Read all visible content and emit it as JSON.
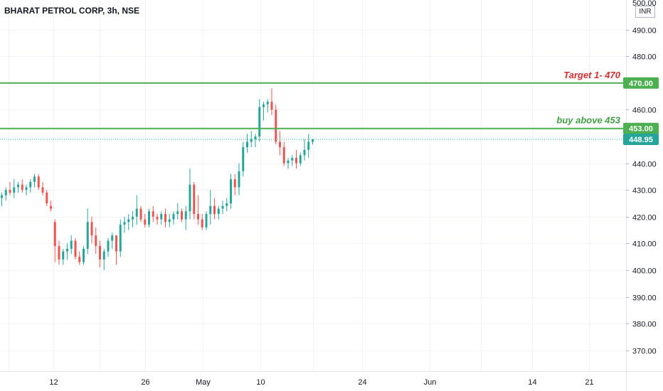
{
  "header": {
    "title": "BHARAT PETROL CORP, 3h, NSE",
    "currency": "INR"
  },
  "chart_data": {
    "type": "candlestick",
    "ylim": [
      364,
      501
    ],
    "y_ticks": [
      370,
      380,
      390,
      400,
      410,
      420,
      430,
      440,
      450,
      460,
      470,
      480,
      490
    ],
    "y_tick_labels": [
      "370.00",
      "380.00",
      "390.00",
      "400.00",
      "410.00",
      "420.00",
      "430.00",
      "440.00",
      "450.00",
      "460.00",
      "470.00",
      "480.00",
      "490.00"
    ],
    "top_tick_label": "500.00",
    "x_tick_labels": [
      "12",
      "26",
      "May",
      "10",
      "24",
      "Jun",
      "14",
      "21"
    ],
    "grid": true,
    "colors": {
      "up": "#26a69a",
      "down": "#ef5350",
      "level": "#4caf50",
      "target": "#d32f2f",
      "last": "#26a69a"
    },
    "levels": [
      {
        "price": 470.0,
        "price_label": "470.00",
        "text": "Target 1- 470",
        "text_color": "#d32f2f"
      },
      {
        "price": 453.0,
        "price_label": "453.00",
        "text": "buy above 453",
        "text_color": "#43a047"
      }
    ],
    "last_price": {
      "price": 448.95,
      "label": "448.95"
    },
    "candles": [
      [
        427,
        429,
        424,
        428
      ],
      [
        428,
        431,
        426,
        430
      ],
      [
        430,
        433,
        428,
        429
      ],
      [
        429,
        434,
        427,
        431
      ],
      [
        431,
        433,
        429,
        432
      ],
      [
        432,
        434,
        429,
        430
      ],
      [
        430,
        432,
        428,
        431
      ],
      [
        431,
        434,
        429,
        433
      ],
      [
        433,
        436,
        431,
        435
      ],
      [
        435,
        436,
        430,
        431
      ],
      [
        431,
        433,
        428,
        429
      ],
      [
        429,
        430,
        424,
        425
      ],
      [
        424,
        426,
        422,
        423
      ],
      [
        418,
        419,
        403,
        409
      ],
      [
        409,
        411,
        402,
        404
      ],
      [
        404,
        408,
        402,
        407
      ],
      [
        407,
        410,
        404,
        408
      ],
      [
        408,
        413,
        406,
        411
      ],
      [
        411,
        412,
        404,
        405
      ],
      [
        405,
        407,
        402,
        403
      ],
      [
        403,
        409,
        402,
        408
      ],
      [
        408,
        423,
        406,
        418
      ],
      [
        418,
        420,
        410,
        413
      ],
      [
        413,
        416,
        406,
        409
      ],
      [
        409,
        411,
        401,
        404
      ],
      [
        404,
        408,
        400,
        407
      ],
      [
        407,
        412,
        405,
        411
      ],
      [
        411,
        414,
        408,
        413
      ],
      [
        413,
        413,
        402,
        407
      ],
      [
        407,
        419,
        405,
        417
      ],
      [
        417,
        420,
        414,
        418
      ],
      [
        418,
        421,
        415,
        419
      ],
      [
        419,
        422,
        416,
        420
      ],
      [
        420,
        428,
        417,
        423
      ],
      [
        423,
        424,
        418,
        419
      ],
      [
        419,
        421,
        416,
        417
      ],
      [
        417,
        423,
        416,
        422
      ],
      [
        422,
        424,
        418,
        420
      ],
      [
        420,
        421,
        417,
        419
      ],
      [
        419,
        422,
        417,
        421
      ],
      [
        421,
        423,
        416,
        418
      ],
      [
        418,
        421,
        416,
        419
      ],
      [
        419,
        422,
        417,
        421
      ],
      [
        421,
        425,
        419,
        422
      ],
      [
        422,
        423,
        418,
        419
      ],
      [
        419,
        424,
        415,
        422
      ],
      [
        422,
        438,
        419,
        432
      ],
      [
        432,
        433,
        419,
        421
      ],
      [
        421,
        428,
        417,
        419
      ],
      [
        419,
        421,
        415,
        416
      ],
      [
        416,
        422,
        415,
        421
      ],
      [
        421,
        430,
        417,
        424
      ],
      [
        424,
        427,
        419,
        421
      ],
      [
        421,
        424,
        419,
        423
      ],
      [
        423,
        426,
        421,
        424
      ],
      [
        424,
        427,
        422,
        425
      ],
      [
        425,
        436,
        423,
        434
      ],
      [
        434,
        436,
        428,
        431
      ],
      [
        431,
        440,
        428,
        437
      ],
      [
        437,
        448,
        435,
        446
      ],
      [
        446,
        451,
        444,
        448
      ],
      [
        448,
        452,
        446,
        449
      ],
      [
        449,
        451,
        446,
        450
      ],
      [
        450,
        464,
        448,
        461
      ],
      [
        461,
        463,
        456,
        462
      ],
      [
        462,
        464,
        459,
        463
      ],
      [
        463,
        468,
        458,
        460
      ],
      [
        460,
        462,
        447,
        448
      ],
      [
        448,
        452,
        443,
        446
      ],
      [
        446,
        448,
        439,
        440
      ],
      [
        440,
        442,
        438,
        441
      ],
      [
        441,
        443,
        439,
        442
      ],
      [
        442,
        445,
        438,
        440
      ],
      [
        440,
        444,
        439,
        443
      ],
      [
        443,
        449,
        441,
        445
      ],
      [
        445,
        451,
        442,
        448
      ],
      [
        448,
        449,
        447,
        449
      ]
    ]
  }
}
